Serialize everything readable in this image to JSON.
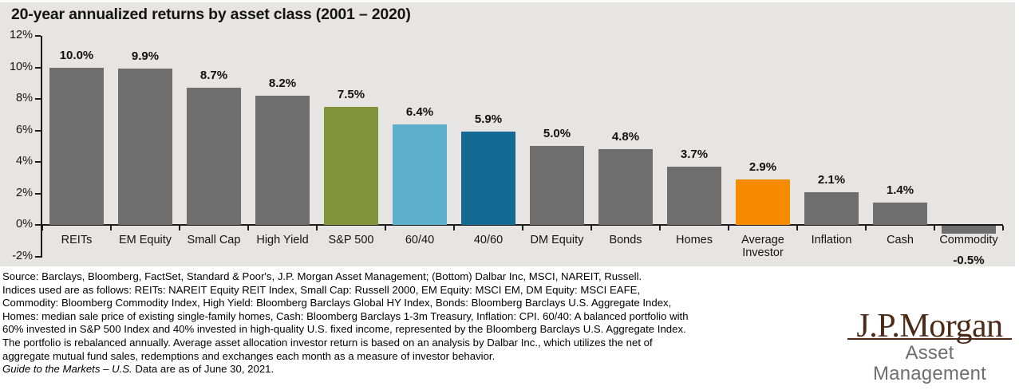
{
  "chart_data": {
    "type": "bar",
    "title": "20-year annualized returns by asset class (2001 – 2020)",
    "categories": [
      "REITs",
      "EM Equity",
      "Small Cap",
      "High Yield",
      "S&P 500",
      "60/40",
      "40/60",
      "DM Equity",
      "Bonds",
      "Homes",
      "Average Investor",
      "Inflation",
      "Cash",
      "Commodity"
    ],
    "values": [
      10.0,
      9.9,
      8.7,
      8.2,
      7.5,
      6.4,
      5.9,
      5.0,
      4.8,
      3.7,
      2.9,
      2.1,
      1.4,
      -0.5
    ],
    "value_labels": [
      "10.0%",
      "9.9%",
      "8.7%",
      "8.2%",
      "7.5%",
      "6.4%",
      "5.9%",
      "5.0%",
      "4.8%",
      "3.7%",
      "2.9%",
      "2.1%",
      "1.4%",
      "-0.5%"
    ],
    "bar_colors": [
      "bar_gray",
      "bar_gray",
      "bar_gray",
      "bar_gray",
      "olive_green",
      "light_blue",
      "dark_blue",
      "bar_gray",
      "bar_gray",
      "bar_gray",
      "orange",
      "bar_gray",
      "bar_gray",
      "bar_gray"
    ],
    "y_ticks": [
      "12%",
      "10%",
      "8%",
      "6%",
      "4%",
      "2%",
      "0%",
      "-2%"
    ],
    "ylim": [
      -2,
      12
    ],
    "xlabel": "",
    "ylabel": "",
    "grid": false,
    "legend": "none"
  },
  "palette": {
    "panel_bg": "#e6e5e3",
    "bar_gray": "#6d6e6d",
    "olive_green": "#81943b",
    "light_blue": "#5fb0cd",
    "dark_blue": "#146a92",
    "orange": "#f68b00",
    "axis": "#1a1a1a",
    "brand_brown": "#4b2b18",
    "division_gray": "#6e6e6e"
  },
  "footnote": {
    "lines": [
      "Source: Barclays, Bloomberg, FactSet, Standard & Poor's, J.P. Morgan Asset Management; (Bottom) Dalbar Inc, MSCI, NAREIT, Russell.",
      "Indices used are as follows: REITs: NAREIT Equity REIT Index, Small Cap: Russell 2000, EM Equity: MSCI EM, DM Equity: MSCI EAFE,",
      "Commodity: Bloomberg Commodity Index, High Yield: Bloomberg Barclays Global HY Index, Bonds: Bloomberg Barclays U.S. Aggregate Index,",
      "Homes: median sale price of existing single-family homes, Cash: Bloomberg Barclays 1-3m Treasury, Inflation: CPI. 60/40: A balanced portfolio with",
      "60% invested in S&P 500 Index and 40% invested in high-quality U.S. fixed income, represented by the Bloomberg Barclays U.S. Aggregate Index.",
      "The portfolio is rebalanced annually. Average asset allocation investor return is based on an analysis by Dalbar Inc., which utilizes the net of",
      "aggregate mutual fund sales, redemptions and exchanges each month as a measure of investor behavior."
    ],
    "guide_italic": "Guide to the Markets – U.S.",
    "guide_rest": " Data are as of June 30, 2021."
  },
  "logo": {
    "brand": "J.P.Morgan",
    "division": "Asset Management"
  }
}
